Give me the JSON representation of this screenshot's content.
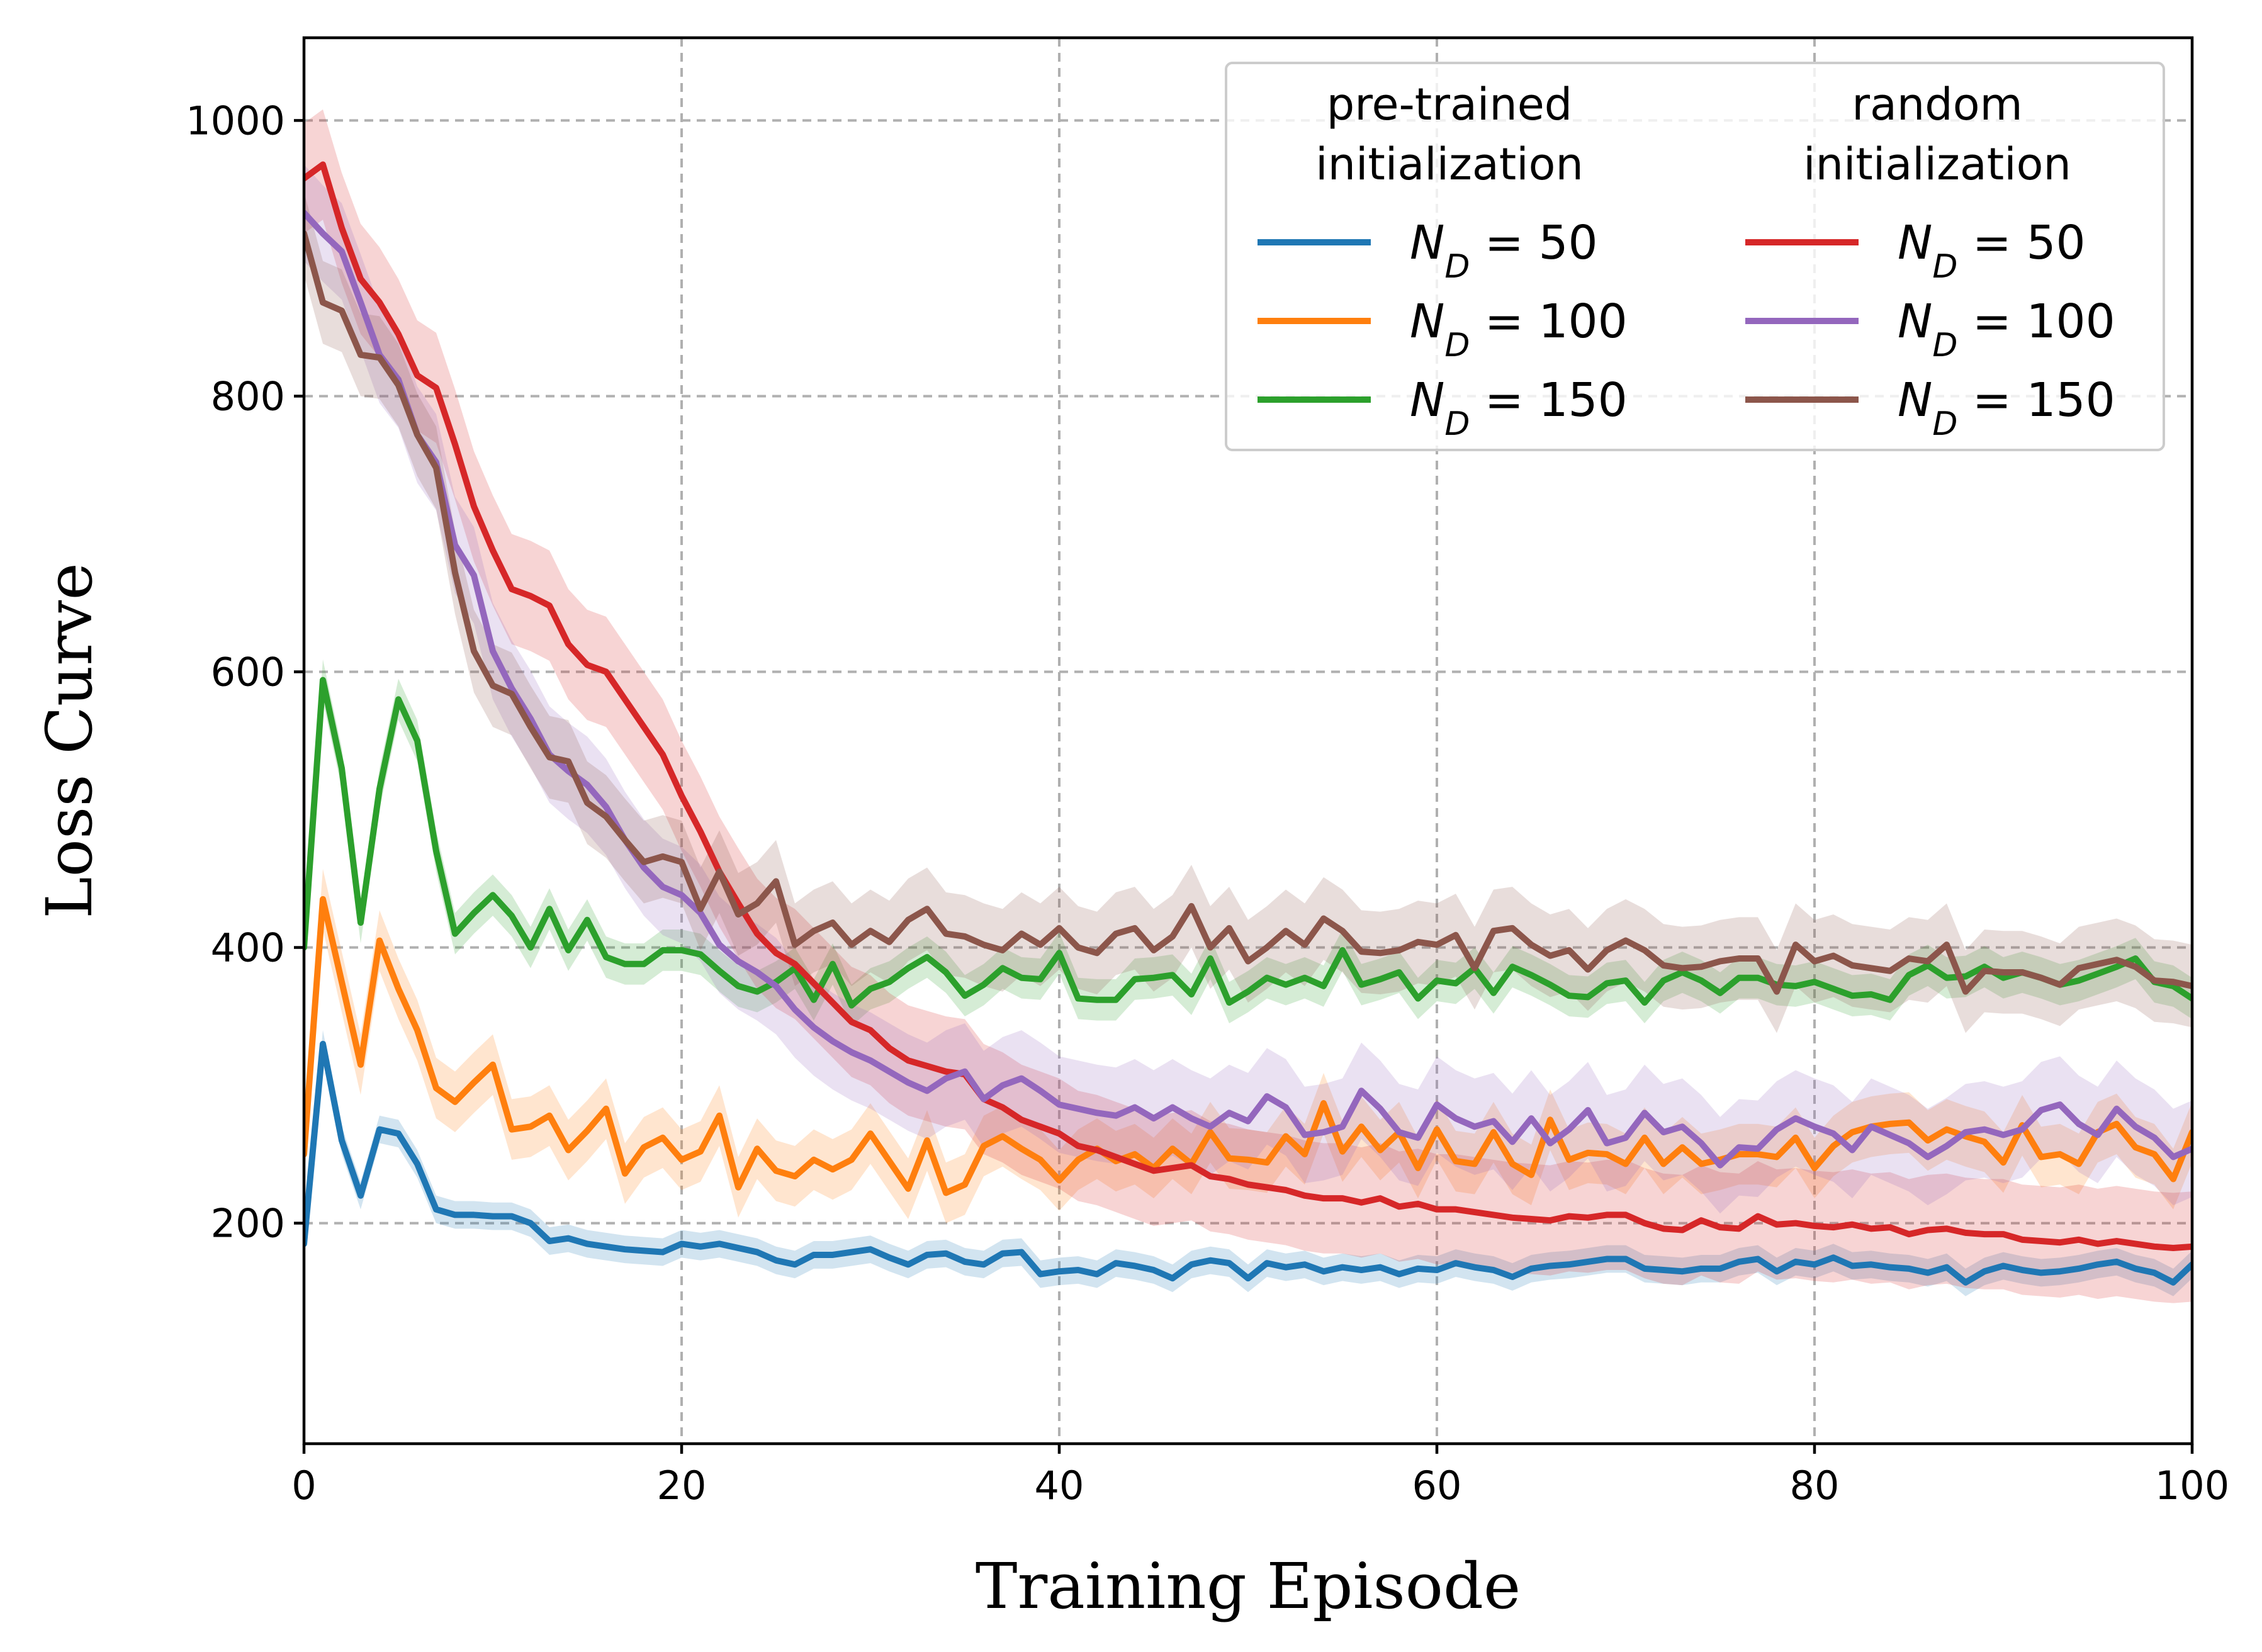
{
  "chart_data": {
    "type": "line",
    "title": "",
    "xlabel": "Training Episode",
    "ylabel": "Loss Curve",
    "xlim": [
      0,
      100
    ],
    "ylim": [
      40,
      1060
    ],
    "xticks": [
      0,
      20,
      40,
      60,
      80,
      100
    ],
    "yticks": [
      200,
      400,
      600,
      800,
      1000
    ],
    "grid": true,
    "legend": {
      "placement": "top-right",
      "columns": [
        {
          "header": [
            "pre-trained",
            "initialization"
          ],
          "series": [
            "pre_50",
            "pre_100",
            "pre_150"
          ]
        },
        {
          "header": [
            "random",
            "initialization"
          ],
          "series": [
            "rand_50",
            "rand_100",
            "rand_150"
          ]
        }
      ]
    },
    "series": [
      {
        "id": "pre_50",
        "name": "N_D = 50",
        "label_n": "50",
        "group": "pre-trained initialization",
        "color": "#1f77b4",
        "band": 10,
        "values": [
          185,
          330,
          260,
          220,
          268,
          265,
          243,
          210,
          206,
          206,
          205,
          205,
          200,
          187,
          189,
          185,
          183,
          181,
          180,
          179,
          185,
          183,
          185,
          182,
          179,
          173,
          170,
          177,
          177,
          179,
          181,
          175,
          170,
          177,
          178,
          172,
          170,
          178,
          179,
          163,
          165,
          166,
          163,
          171,
          169,
          166,
          160,
          170,
          173,
          171,
          160,
          171,
          168,
          170,
          165,
          168,
          166,
          168,
          163,
          167,
          166,
          171,
          168,
          166,
          161,
          167,
          169,
          170,
          172,
          174,
          174,
          167,
          166,
          165,
          167,
          167,
          172,
          174,
          165,
          172,
          170,
          175,
          169,
          170,
          168,
          167,
          164,
          168,
          157,
          165,
          169,
          166,
          164,
          165,
          167,
          170,
          172,
          167,
          164,
          157,
          170
        ]
      },
      {
        "id": "pre_100",
        "name": "N_D = 100",
        "label_n": "100",
        "group": "pre-trained initialization",
        "color": "#ff7f0e",
        "band": 22,
        "values": [
          250,
          435,
          375,
          315,
          405,
          370,
          340,
          298,
          288,
          302,
          315,
          268,
          270,
          278,
          253,
          267,
          283,
          236,
          255,
          262,
          246,
          252,
          278,
          226,
          254,
          238,
          234,
          246,
          239,
          246,
          265,
          245,
          225,
          260,
          222,
          228,
          256,
          263,
          254,
          246,
          231,
          246,
          254,
          245,
          250,
          240,
          254,
          243,
          266,
          247,
          246,
          244,
          263,
          250,
          287,
          252,
          270,
          253,
          266,
          240,
          268,
          245,
          243,
          266,
          243,
          235,
          275,
          246,
          251,
          250,
          243,
          262,
          243,
          255,
          243,
          246,
          250,
          250,
          248,
          262,
          240,
          256,
          266,
          270,
          272,
          273,
          260,
          268,
          263,
          259,
          244,
          271,
          248,
          250,
          243,
          266,
          272,
          255,
          250,
          232,
          266
        ]
      },
      {
        "id": "pre_150",
        "name": "N_D = 150",
        "label_n": "150",
        "group": "pre-trained initialization",
        "color": "#2ca02c",
        "band": 15,
        "values": [
          400,
          594,
          530,
          418,
          515,
          580,
          550,
          470,
          410,
          425,
          438,
          423,
          400,
          428,
          398,
          420,
          393,
          388,
          388,
          398,
          398,
          395,
          383,
          372,
          368,
          375,
          385,
          362,
          388,
          358,
          370,
          375,
          385,
          393,
          382,
          365,
          373,
          385,
          378,
          377,
          396,
          363,
          362,
          362,
          377,
          378,
          380,
          366,
          392,
          360,
          368,
          378,
          373,
          378,
          372,
          398,
          373,
          377,
          382,
          363,
          376,
          374,
          385,
          367,
          386,
          380,
          373,
          365,
          364,
          374,
          376,
          360,
          376,
          382,
          376,
          367,
          378,
          378,
          373,
          372,
          375,
          370,
          365,
          366,
          362,
          380,
          387,
          378,
          379,
          386,
          378,
          382,
          378,
          373,
          376,
          381,
          386,
          392,
          375,
          372,
          363
        ]
      },
      {
        "id": "rand_50",
        "name": "N_D = 50",
        "label_n": "50",
        "group": "random initialization",
        "color": "#d62728",
        "band": 40,
        "values": [
          958,
          968,
          922,
          885,
          868,
          845,
          815,
          806,
          765,
          720,
          688,
          660,
          655,
          648,
          620,
          605,
          600,
          580,
          560,
          540,
          510,
          484,
          455,
          432,
          410,
          396,
          388,
          374,
          360,
          346,
          340,
          327,
          318,
          314,
          310,
          308,
          290,
          284,
          275,
          270,
          265,
          256,
          253,
          248,
          243,
          238,
          240,
          242,
          234,
          232,
          228,
          226,
          224,
          220,
          218,
          218,
          215,
          218,
          212,
          214,
          210,
          210,
          208,
          206,
          204,
          203,
          202,
          205,
          204,
          206,
          206,
          200,
          196,
          195,
          202,
          197,
          196,
          205,
          199,
          200,
          198,
          197,
          199,
          196,
          197,
          192,
          195,
          196,
          193,
          192,
          192,
          188,
          187,
          186,
          188,
          185,
          187,
          185,
          183,
          182,
          183
        ]
      },
      {
        "id": "rand_100",
        "name": "N_D = 100",
        "label_n": "100",
        "group": "random initialization",
        "color": "#9467bd",
        "band": 35,
        "values": [
          933,
          918,
          905,
          868,
          830,
          812,
          772,
          752,
          692,
          670,
          615,
          588,
          566,
          540,
          528,
          518,
          502,
          478,
          458,
          444,
          438,
          425,
          402,
          390,
          382,
          372,
          355,
          342,
          332,
          324,
          318,
          310,
          302,
          296,
          305,
          310,
          290,
          300,
          305,
          296,
          286,
          283,
          280,
          278,
          284,
          276,
          284,
          276,
          270,
          280,
          274,
          292,
          284,
          264,
          266,
          270,
          296,
          283,
          266,
          262,
          286,
          276,
          270,
          274,
          259,
          276,
          258,
          268,
          282,
          258,
          262,
          280,
          266,
          270,
          258,
          242,
          255,
          254,
          268,
          276,
          270,
          265,
          253,
          270,
          264,
          258,
          248,
          256,
          266,
          268,
          264,
          268,
          282,
          286,
          272,
          264,
          283,
          270,
          262,
          248,
          254
        ]
      },
      {
        "id": "rand_150",
        "name": "N_D = 150",
        "label_n": "150",
        "group": "random initialization",
        "color": "#8c564b",
        "band": 30,
        "values": [
          918,
          868,
          862,
          830,
          828,
          808,
          772,
          748,
          672,
          615,
          590,
          584,
          560,
          538,
          535,
          505,
          495,
          478,
          462,
          466,
          462,
          428,
          455,
          424,
          432,
          448,
          402,
          412,
          418,
          402,
          412,
          404,
          420,
          428,
          410,
          408,
          402,
          398,
          410,
          402,
          414,
          400,
          396,
          410,
          414,
          398,
          408,
          430,
          400,
          414,
          390,
          400,
          412,
          402,
          421,
          412,
          397,
          396,
          398,
          404,
          402,
          409,
          385,
          412,
          414,
          402,
          394,
          398,
          384,
          398,
          405,
          398,
          387,
          385,
          386,
          390,
          392,
          392,
          368,
          402,
          390,
          394,
          387,
          385,
          383,
          392,
          390,
          402,
          368,
          383,
          382,
          382,
          378,
          373,
          385,
          388,
          391,
          386,
          376,
          375,
          372
        ]
      }
    ]
  }
}
